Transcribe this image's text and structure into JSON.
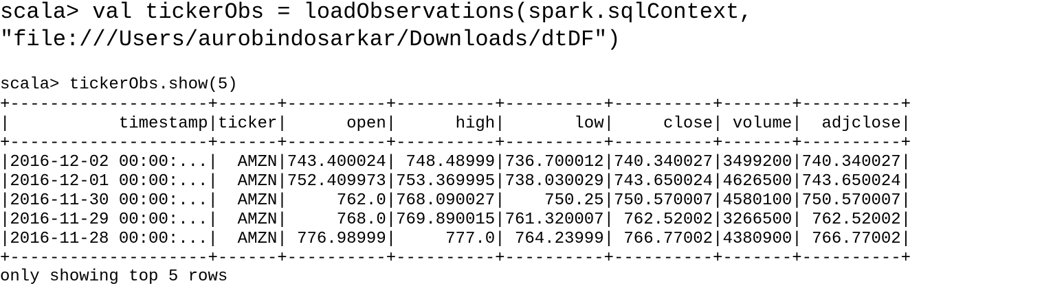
{
  "terminal": {
    "command_lines": [
      "scala> val tickerObs = loadObservations(spark.sqlContext,",
      "\"file:///Users/aurobindosarkar/Downloads/dtDF\")"
    ],
    "show_command": "scala> tickerObs.show(5)",
    "table": {
      "columns": [
        "timestamp",
        "ticker",
        "open",
        "high",
        "low",
        "close",
        "volume",
        "adjclose"
      ],
      "rows": [
        [
          "2016-12-02 00:00:...",
          "AMZN",
          "743.400024",
          "748.48999",
          "736.700012",
          "740.340027",
          "3499200",
          "740.340027"
        ],
        [
          "2016-12-01 00:00:...",
          "AMZN",
          "752.409973",
          "753.369995",
          "738.030029",
          "743.650024",
          "4626500",
          "743.650024"
        ],
        [
          "2016-11-30 00:00:...",
          "AMZN",
          "762.0",
          "768.090027",
          "750.25",
          "750.570007",
          "4580100",
          "750.570007"
        ],
        [
          "2016-11-29 00:00:...",
          "AMZN",
          "768.0",
          "769.890015",
          "761.320007",
          "762.52002",
          "3266500",
          "762.52002"
        ],
        [
          "2016-11-28 00:00:...",
          "AMZN",
          "776.98999",
          "777.0",
          "764.23999",
          "766.77002",
          "4380900",
          "766.77002"
        ]
      ]
    },
    "footer": "only showing top 5 rows"
  }
}
